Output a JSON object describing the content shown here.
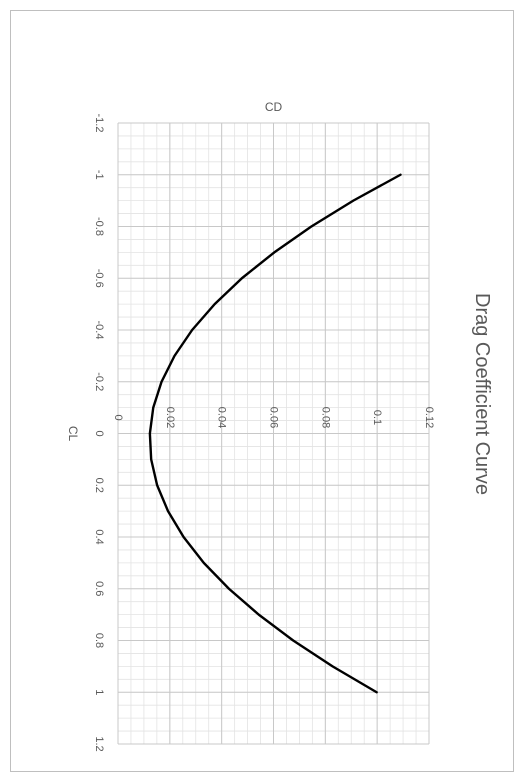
{
  "chart_data": {
    "type": "line",
    "title": "Drag Coefficient Curve",
    "xlabel": "CL",
    "ylabel": "CD",
    "xlim": [
      -1.2,
      1.2
    ],
    "ylim": [
      0,
      0.12
    ],
    "x_ticks": [
      "-1.2",
      "-1",
      "-0.8",
      "-0.6",
      "-0.4",
      "-0.2",
      "0",
      "0.2",
      "0.4",
      "0.6",
      "0.8",
      "1",
      "1.2"
    ],
    "y_ticks": [
      "0",
      "0.02",
      "0.04",
      "0.06",
      "0.08",
      "0.1",
      "0.12"
    ],
    "grid": true,
    "orientation": "rotated-90-clockwise",
    "series": [
      {
        "color": "#000000",
        "x": [
          -1.0,
          -0.9,
          -0.8,
          -0.7,
          -0.6,
          -0.5,
          -0.4,
          -0.3,
          -0.2,
          -0.1,
          0.0,
          0.1,
          0.2,
          0.3,
          0.4,
          0.5,
          0.6,
          0.7,
          0.8,
          0.9,
          1.0
        ],
        "y": [
          0.109,
          0.0908,
          0.0746,
          0.0603,
          0.0478,
          0.0373,
          0.0286,
          0.0218,
          0.0168,
          0.0136,
          0.0123,
          0.0128,
          0.0151,
          0.0193,
          0.0253,
          0.0331,
          0.0428,
          0.0543,
          0.0676,
          0.0828,
          0.0998
        ]
      }
    ]
  }
}
